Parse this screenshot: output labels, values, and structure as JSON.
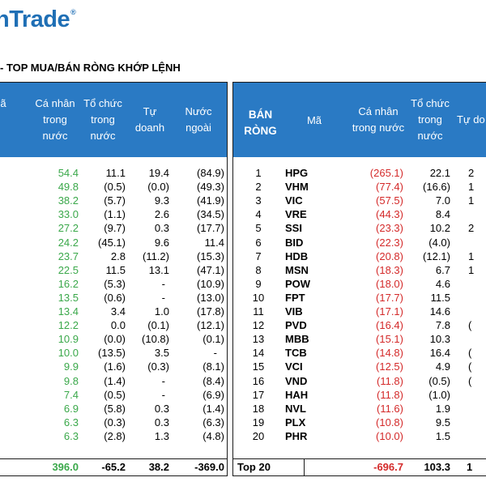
{
  "logo": {
    "text": "nTrade",
    "mark": "®"
  },
  "subtitle": "- TOP MUA/BÁN RÒNG KHỚP LỆNH",
  "left": {
    "headers": {
      "partial": "ã",
      "ca_nhan": "Cá nhân\ntrong\nnước",
      "to_chuc": "Tổ chức\ntrong\nnước",
      "tu_doanh": "Tự\ndoanh",
      "nuoc_ngoai": "Nước\nngoài"
    },
    "rows": [
      {
        "ca_nhan": "54.4",
        "to_chuc": "11.1",
        "tu_doanh": "19.4",
        "nuoc_ngoai": "(84.9)"
      },
      {
        "ca_nhan": "49.8",
        "to_chuc": "(0.5)",
        "tu_doanh": "(0.0)",
        "nuoc_ngoai": "(49.3)"
      },
      {
        "ca_nhan": "38.2",
        "to_chuc": "(5.7)",
        "tu_doanh": "9.3",
        "nuoc_ngoai": "(41.9)"
      },
      {
        "ca_nhan": "33.0",
        "to_chuc": "(1.1)",
        "tu_doanh": "2.6",
        "nuoc_ngoai": "(34.5)"
      },
      {
        "ca_nhan": "27.2",
        "to_chuc": "(9.7)",
        "tu_doanh": "0.3",
        "nuoc_ngoai": "(17.7)"
      },
      {
        "ca_nhan": "24.2",
        "to_chuc": "(45.1)",
        "tu_doanh": "9.6",
        "nuoc_ngoai": "11.4"
      },
      {
        "ca_nhan": "23.7",
        "to_chuc": "2.8",
        "tu_doanh": "(11.2)",
        "nuoc_ngoai": "(15.3)"
      },
      {
        "ca_nhan": "22.5",
        "to_chuc": "11.5",
        "tu_doanh": "13.1",
        "nuoc_ngoai": "(47.1)"
      },
      {
        "ca_nhan": "16.2",
        "to_chuc": "(5.3)",
        "tu_doanh": "-",
        "nuoc_ngoai": "(10.9)"
      },
      {
        "ca_nhan": "13.5",
        "to_chuc": "(0.6)",
        "tu_doanh": "-",
        "nuoc_ngoai": "(13.0)"
      },
      {
        "ca_nhan": "13.4",
        "to_chuc": "3.4",
        "tu_doanh": "1.0",
        "nuoc_ngoai": "(17.8)"
      },
      {
        "ca_nhan": "12.2",
        "to_chuc": "0.0",
        "tu_doanh": "(0.1)",
        "nuoc_ngoai": "(12.1)"
      },
      {
        "ca_nhan": "10.9",
        "to_chuc": "(0.0)",
        "tu_doanh": "(10.8)",
        "nuoc_ngoai": "(0.1)"
      },
      {
        "ca_nhan": "10.0",
        "to_chuc": "(13.5)",
        "tu_doanh": "3.5",
        "nuoc_ngoai": "-"
      },
      {
        "ca_nhan": "9.9",
        "to_chuc": "(1.6)",
        "tu_doanh": "(0.3)",
        "nuoc_ngoai": "(8.1)"
      },
      {
        "ca_nhan": "9.8",
        "to_chuc": "(1.4)",
        "tu_doanh": "-",
        "nuoc_ngoai": "(8.4)"
      },
      {
        "ca_nhan": "7.4",
        "to_chuc": "(0.5)",
        "tu_doanh": "-",
        "nuoc_ngoai": "(6.9)"
      },
      {
        "ca_nhan": "6.9",
        "to_chuc": "(5.8)",
        "tu_doanh": "0.3",
        "nuoc_ngoai": "(1.4)"
      },
      {
        "ca_nhan": "6.3",
        "to_chuc": "(0.3)",
        "tu_doanh": "0.3",
        "nuoc_ngoai": "(6.3)"
      },
      {
        "ca_nhan": "6.3",
        "to_chuc": "(2.8)",
        "tu_doanh": "1.3",
        "nuoc_ngoai": "(4.8)"
      }
    ],
    "total": {
      "ca_nhan": "396.0",
      "to_chuc": "-65.2",
      "tu_doanh": "38.2",
      "nuoc_ngoai": "-369.0"
    }
  },
  "right": {
    "headers": {
      "ban_rong": "BÁN\nRÒNG",
      "ma": "Mã",
      "ca_nhan": "Cá nhân\ntrong nước",
      "to_chuc": "Tổ chức\ntrong\nnước",
      "tu_doanh": "Tự do"
    },
    "rows": [
      {
        "rank": "1",
        "ma": "HPG",
        "ca_nhan": "(265.1)",
        "to_chuc": "22.1",
        "tu_doanh": "2"
      },
      {
        "rank": "2",
        "ma": "VHM",
        "ca_nhan": "(77.4)",
        "to_chuc": "(16.6)",
        "tu_doanh": "1"
      },
      {
        "rank": "3",
        "ma": "VIC",
        "ca_nhan": "(57.5)",
        "to_chuc": "7.0",
        "tu_doanh": "1"
      },
      {
        "rank": "4",
        "ma": "VRE",
        "ca_nhan": "(44.3)",
        "to_chuc": "8.4",
        "tu_doanh": ""
      },
      {
        "rank": "5",
        "ma": "SSI",
        "ca_nhan": "(23.3)",
        "to_chuc": "10.2",
        "tu_doanh": "2"
      },
      {
        "rank": "6",
        "ma": "BID",
        "ca_nhan": "(22.3)",
        "to_chuc": "(4.0)",
        "tu_doanh": ""
      },
      {
        "rank": "7",
        "ma": "HDB",
        "ca_nhan": "(20.8)",
        "to_chuc": "(12.1)",
        "tu_doanh": "1"
      },
      {
        "rank": "8",
        "ma": "MSN",
        "ca_nhan": "(18.3)",
        "to_chuc": "6.7",
        "tu_doanh": "1"
      },
      {
        "rank": "9",
        "ma": "POW",
        "ca_nhan": "(18.0)",
        "to_chuc": "4.6",
        "tu_doanh": ""
      },
      {
        "rank": "10",
        "ma": "FPT",
        "ca_nhan": "(17.7)",
        "to_chuc": "11.5",
        "tu_doanh": ""
      },
      {
        "rank": "11",
        "ma": "VIB",
        "ca_nhan": "(17.1)",
        "to_chuc": "14.6",
        "tu_doanh": ""
      },
      {
        "rank": "12",
        "ma": "PVD",
        "ca_nhan": "(16.4)",
        "to_chuc": "7.8",
        "tu_doanh": "("
      },
      {
        "rank": "13",
        "ma": "MBB",
        "ca_nhan": "(15.1)",
        "to_chuc": "10.3",
        "tu_doanh": ""
      },
      {
        "rank": "14",
        "ma": "TCB",
        "ca_nhan": "(14.8)",
        "to_chuc": "16.4",
        "tu_doanh": "("
      },
      {
        "rank": "15",
        "ma": "VCI",
        "ca_nhan": "(12.5)",
        "to_chuc": "4.9",
        "tu_doanh": "("
      },
      {
        "rank": "16",
        "ma": "VND",
        "ca_nhan": "(11.8)",
        "to_chuc": "(0.5)",
        "tu_doanh": "("
      },
      {
        "rank": "17",
        "ma": "HAH",
        "ca_nhan": "(11.8)",
        "to_chuc": "(1.0)",
        "tu_doanh": ""
      },
      {
        "rank": "18",
        "ma": "NVL",
        "ca_nhan": "(11.6)",
        "to_chuc": "1.9",
        "tu_doanh": ""
      },
      {
        "rank": "19",
        "ma": "PLX",
        "ca_nhan": "(10.8)",
        "to_chuc": "9.5",
        "tu_doanh": ""
      },
      {
        "rank": "20",
        "ma": "PHR",
        "ca_nhan": "(10.0)",
        "to_chuc": "1.5",
        "tu_doanh": ""
      }
    ],
    "total": {
      "label": "Top 20",
      "ca_nhan": "-696.7",
      "to_chuc": "103.3",
      "tu_doanh": "1"
    }
  }
}
